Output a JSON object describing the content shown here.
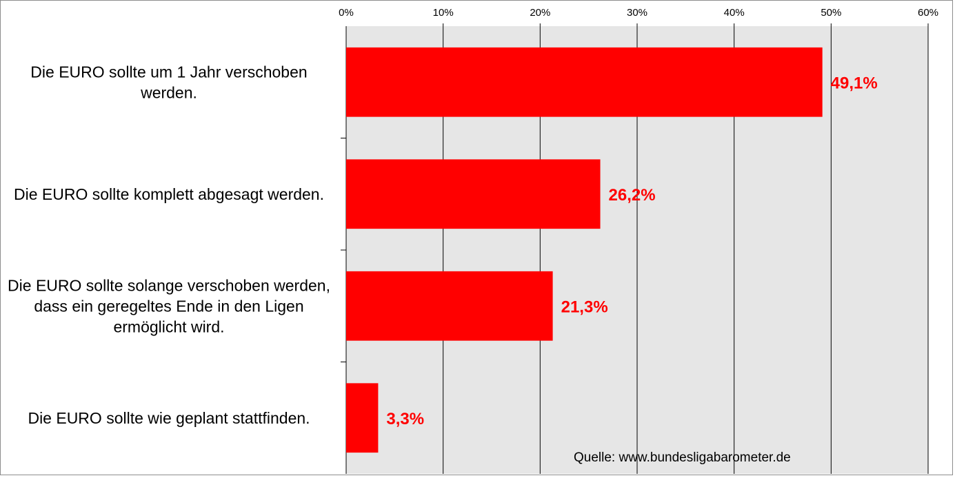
{
  "chart_data": {
    "type": "bar",
    "orientation": "horizontal",
    "categories": [
      [
        "Die EURO sollte um 1 Jahr verschoben",
        "werden."
      ],
      [
        "Die EURO sollte komplett abgesagt werden."
      ],
      [
        "Die EURO sollte solange verschoben werden,",
        "dass ein geregeltes Ende in den Ligen",
        "ermöglicht wird."
      ],
      [
        "Die EURO sollte wie geplant stattfinden."
      ]
    ],
    "values": [
      49.1,
      26.2,
      21.3,
      3.3
    ],
    "value_labels": [
      "49,1%",
      "26,2%",
      "21,3%",
      "3,3%"
    ],
    "xlim": [
      0,
      60
    ],
    "x_ticks": [
      0,
      10,
      20,
      30,
      40,
      50,
      60
    ],
    "x_tick_labels": [
      "0%",
      "10%",
      "20%",
      "30%",
      "40%",
      "50%",
      "60%"
    ],
    "x_axis_position": "top",
    "grid": true,
    "legend": "none",
    "colors": {
      "bar": "#ff0000",
      "value_label": "#ff0000",
      "plot_background": "#e6e6e6",
      "grid": "#000000"
    }
  },
  "source": "Quelle: www.bundesligabarometer.de"
}
